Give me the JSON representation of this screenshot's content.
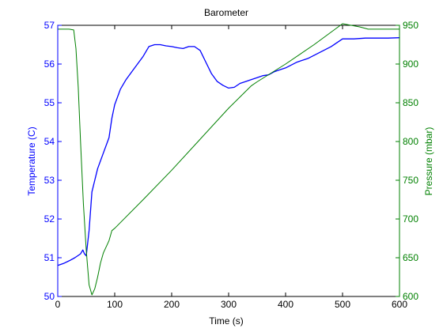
{
  "chart_data": {
    "type": "line",
    "title": "Barometer",
    "xlabel": "Time (s)",
    "ylabel_left": "Temperature (C)",
    "ylabel_right": "Pressure (mbar)",
    "xlim": [
      0,
      600
    ],
    "ylim_left": [
      50,
      57
    ],
    "ylim_right": [
      600,
      950
    ],
    "xticks": [
      "0",
      "100",
      "200",
      "300",
      "400",
      "500",
      "600"
    ],
    "yticks_left": [
      "50",
      "51",
      "52",
      "53",
      "54",
      "55",
      "56",
      "57"
    ],
    "yticks_right": [
      "600",
      "650",
      "700",
      "750",
      "800",
      "850",
      "900",
      "950"
    ],
    "grid": false,
    "colors": {
      "temperature": "#0000ff",
      "pressure": "#008000",
      "axes": "#000000"
    },
    "series": [
      {
        "axis": "left",
        "x": [
          0,
          10,
          20,
          30,
          40,
          44,
          47,
          50,
          55,
          60,
          65,
          70,
          80,
          90,
          95,
          100,
          110,
          120,
          130,
          140,
          150,
          160,
          170,
          180,
          190,
          200,
          210,
          220,
          230,
          240,
          250,
          260,
          270,
          280,
          290,
          300,
          310,
          320,
          330,
          340,
          350,
          360,
          370,
          380,
          390,
          400,
          420,
          440,
          460,
          480,
          500,
          520,
          540,
          560,
          580,
          600
        ],
        "y": [
          50.8,
          50.85,
          50.92,
          51.0,
          51.1,
          51.2,
          51.1,
          51.05,
          51.7,
          52.7,
          53.0,
          53.3,
          53.7,
          54.1,
          54.6,
          54.95,
          55.35,
          55.6,
          55.8,
          56.0,
          56.2,
          56.45,
          56.5,
          56.5,
          56.47,
          56.45,
          56.42,
          56.4,
          56.45,
          56.45,
          56.35,
          56.05,
          55.75,
          55.55,
          55.45,
          55.38,
          55.4,
          55.5,
          55.55,
          55.6,
          55.65,
          55.7,
          55.72,
          55.8,
          55.85,
          55.9,
          56.05,
          56.15,
          56.3,
          56.45,
          56.65,
          56.65,
          56.67,
          56.67,
          56.67,
          56.68
        ]
      },
      {
        "axis": "right",
        "x": [
          0,
          20,
          28,
          32,
          36,
          40,
          45,
          50,
          55,
          60,
          65,
          70,
          75,
          80,
          90,
          95,
          100,
          150,
          200,
          250,
          300,
          340,
          350,
          400,
          450,
          500,
          530,
          545,
          560,
          600
        ],
        "y": [
          945,
          945,
          944,
          920,
          870,
          800,
          720,
          660,
          615,
          602,
          610,
          625,
          643,
          656,
          672,
          685,
          688,
          725,
          763,
          803,
          843,
          872,
          877,
          900,
          925,
          952,
          948,
          945,
          945,
          945
        ]
      }
    ]
  }
}
